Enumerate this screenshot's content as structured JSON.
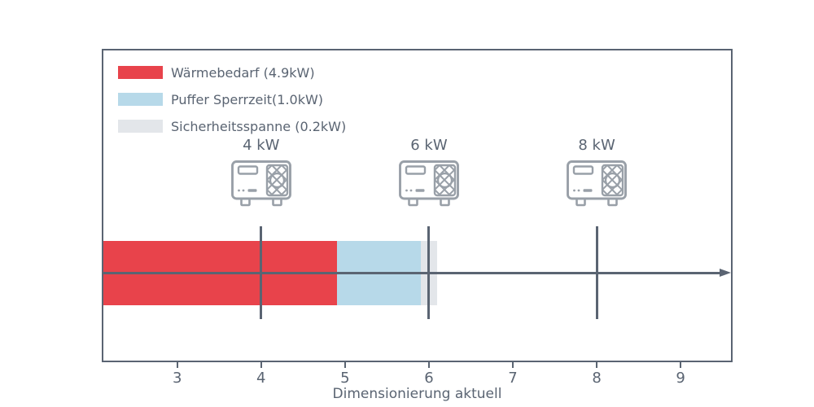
{
  "axis": {
    "label": "Dimensionierung aktuell",
    "color": "#5a6472"
  },
  "chart_data": {
    "type": "bar",
    "orientation": "horizontal-stacked",
    "title": "",
    "xlabel": "Dimensionierung aktuell",
    "ylabel": "",
    "xlim": [
      2.12,
      9.6
    ],
    "xticks": [
      3,
      4,
      5,
      6,
      7,
      8,
      9
    ],
    "bar_start": 0,
    "segments": [
      {
        "name": "waermebedarf",
        "label": "Wärmebedarf (4.9kW)",
        "value": 4.9,
        "end": 4.9,
        "color": "#e8434b"
      },
      {
        "name": "puffer-sperrzeit",
        "label": "Puffer Sperrzeit(1.0kW)",
        "value": 1.0,
        "end": 5.9,
        "color": "#b7d9e9"
      },
      {
        "name": "sicherheitsspanne",
        "label": "Sicherheitsspanne (0.2kW)",
        "value": 0.2,
        "end": 6.1,
        "color": "#e3e6ea"
      }
    ],
    "legend_position": "upper-left",
    "pump_markers": [
      {
        "name": "pump-4kw",
        "label": "4 kW",
        "x": 4
      },
      {
        "name": "pump-6kw",
        "label": "6 kW",
        "x": 6
      },
      {
        "name": "pump-8kw",
        "label": "8 kW",
        "x": 8
      }
    ],
    "colors": {
      "axis": "#5a6472",
      "icon_stroke": "#99a0a8",
      "background": "#ffffff"
    }
  }
}
